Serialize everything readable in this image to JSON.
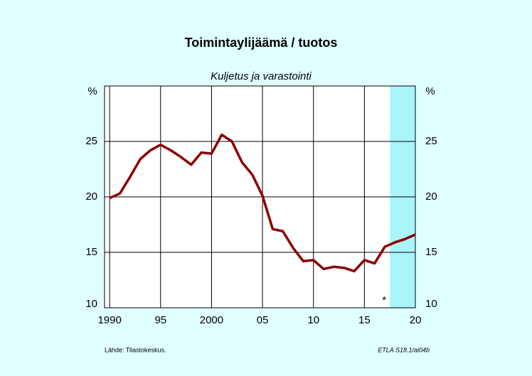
{
  "chart_data": {
    "type": "line",
    "title": "Toimintaylijäämä / tuotos",
    "subtitle": "Kuljetus ja varastointi",
    "y_unit_left": "%",
    "y_unit_right": "%",
    "source": "Lähde:   Tilastokeskus.",
    "code": "ETLA S18.1/ai04b",
    "annotation": "*",
    "forecast_start": 2017.5,
    "forecast_color": "#aaf5fa",
    "x": [
      1990,
      1991,
      1992,
      1993,
      1994,
      1995,
      1996,
      1997,
      1998,
      1999,
      2000,
      2001,
      2002,
      2003,
      2004,
      2005,
      2006,
      2007,
      2008,
      2009,
      2010,
      2011,
      2012,
      2013,
      2014,
      2015,
      2016,
      2017,
      2018,
      2019,
      2020
    ],
    "series": [
      {
        "color": "#8b0000",
        "values": [
          19.9,
          20.3,
          21.8,
          23.4,
          24.2,
          24.7,
          24.2,
          23.6,
          22.9,
          24.0,
          23.9,
          25.6,
          25.0,
          23.1,
          22.0,
          20.1,
          17.1,
          16.9,
          15.4,
          14.2,
          14.3,
          13.5,
          13.7,
          13.6,
          13.3,
          14.3,
          14.0,
          15.5,
          15.9,
          16.2,
          16.6
        ]
      }
    ],
    "xlim": [
      1989.5,
      2020
    ],
    "xticks": [
      {
        "value": 1990,
        "label": "1990"
      },
      {
        "value": 1995,
        "label": "95"
      },
      {
        "value": 2000,
        "label": "2000"
      },
      {
        "value": 2005,
        "label": "05"
      },
      {
        "value": 2010,
        "label": "10"
      },
      {
        "value": 2015,
        "label": "15"
      },
      {
        "value": 2020,
        "label": "20"
      }
    ],
    "ylim": [
      10,
      30
    ],
    "yticks": [
      10,
      15,
      20,
      25
    ],
    "grid": true
  }
}
